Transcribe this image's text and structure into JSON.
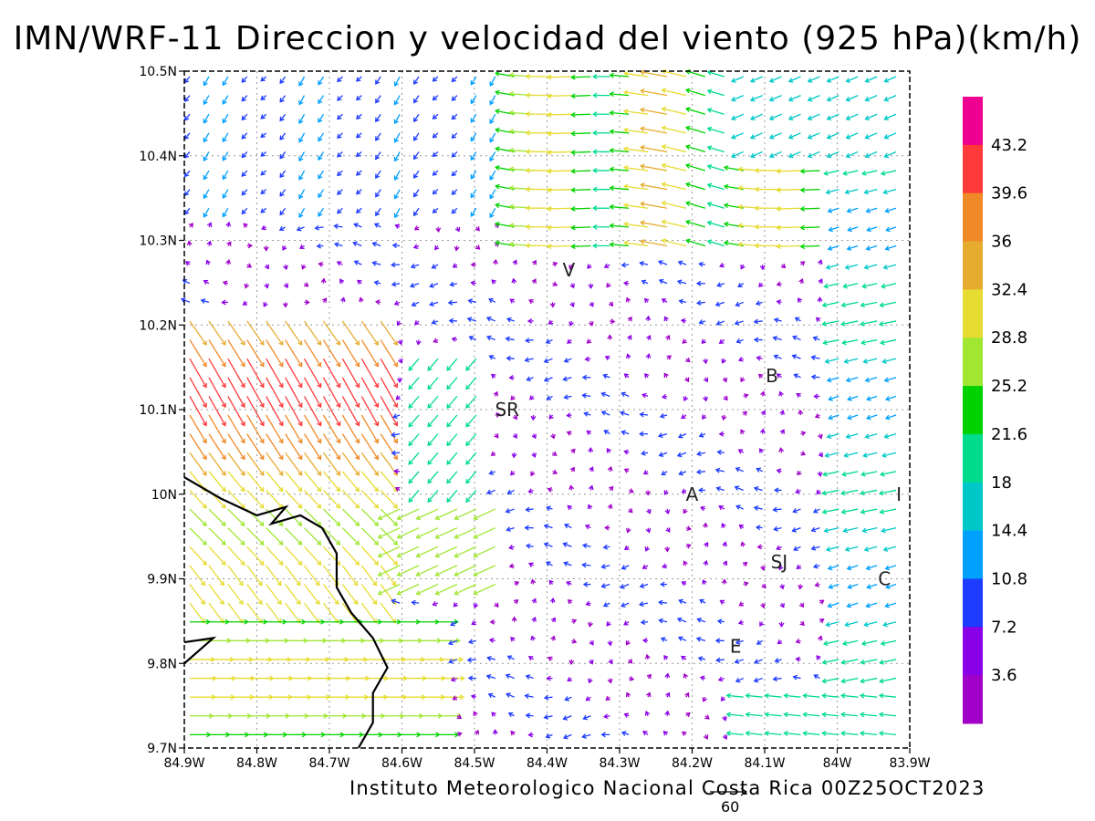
{
  "title": "IMN/WRF-11 Direccion y velocidad del viento (925 hPa)(km/h)",
  "credit": "Instituto Meteorologico Nacional Costa Rica 00Z25OCT2023",
  "reference_vector_label": "60",
  "axes": {
    "x_ticks": [
      "84.9W",
      "84.8W",
      "84.7W",
      "84.6W",
      "84.5W",
      "84.4W",
      "84.3W",
      "84.2W",
      "84.1W",
      "84W",
      "83.9W"
    ],
    "y_ticks": [
      "10.5N",
      "10.4N",
      "10.3N",
      "10.2N",
      "10.1N",
      "10N",
      "9.9N",
      "9.8N",
      "9.7N"
    ],
    "lon_range": [
      -84.9,
      -83.9
    ],
    "lat_range": [
      9.7,
      10.5
    ],
    "grid": true
  },
  "colorbar": {
    "labels": [
      "43.2",
      "39.6",
      "36",
      "32.4",
      "28.8",
      "25.2",
      "21.6",
      "18",
      "14.4",
      "10.8",
      "7.2",
      "3.6"
    ],
    "colors": [
      "#ee0090",
      "#ff3a3a",
      "#f08a28",
      "#e6ac30",
      "#e6dc32",
      "#a0e632",
      "#00d200",
      "#00dc8c",
      "#00c8c8",
      "#00a0ff",
      "#1e3cff",
      "#8a00e6",
      "#a000c8"
    ]
  },
  "cities": [
    {
      "label": "V",
      "lon": -84.37,
      "lat": 10.265
    },
    {
      "label": "SR",
      "lon": -84.455,
      "lat": 10.1
    },
    {
      "label": "B",
      "lon": -84.09,
      "lat": 10.14
    },
    {
      "label": "A",
      "lon": -84.2,
      "lat": 10.0
    },
    {
      "label": "I",
      "lon": -83.915,
      "lat": 10.0
    },
    {
      "label": "SJ",
      "lon": -84.08,
      "lat": 9.92
    },
    {
      "label": "C",
      "lon": -83.935,
      "lat": 9.9
    },
    {
      "label": "E",
      "lon": -84.14,
      "lat": 9.82
    }
  ],
  "chart_data": {
    "type": "vector-field",
    "variable": "wind direction and speed at 925 hPa",
    "units": "km/h",
    "x_range": [
      -84.9,
      -83.9
    ],
    "y_range": [
      9.7,
      10.5
    ],
    "wind_regions": [
      {
        "lon_min": -84.9,
        "lon_max": -84.65,
        "lat_min": 9.9,
        "lat_max": 10.2,
        "dir": "southeast (toward SE)",
        "speed": 38
      },
      {
        "lon_min": -84.9,
        "lon_max": -84.6,
        "lat_min": 9.7,
        "lat_max": 9.9,
        "dir": "east",
        "speed": 24
      },
      {
        "lon_min": -84.65,
        "lon_max": -84.5,
        "lat_min": 9.9,
        "lat_max": 10.0,
        "dir": "southwest",
        "speed": 30
      },
      {
        "lon_min": -84.45,
        "lon_max": -84.0,
        "lat_min": 10.3,
        "lat_max": 10.45,
        "dir": "west",
        "speed": 24
      },
      {
        "lon_min": -84.0,
        "lon_max": -83.9,
        "lat_min": 9.7,
        "lat_max": 10.5,
        "dir": "west-southwest",
        "speed": 16
      },
      {
        "lon_min": -84.4,
        "lon_max": -84.1,
        "lat_min": 9.7,
        "lat_max": 10.2,
        "dir": "variable",
        "speed": 8
      }
    ]
  }
}
